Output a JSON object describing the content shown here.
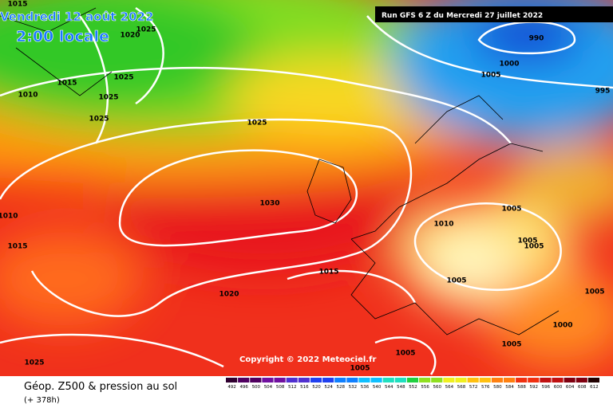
{
  "header": {
    "valid_date": "Vendredi 12 août 2022",
    "local_time": "2:00 locale",
    "run": "Run GFS 6 Z du Mercredi 27 juillet 2022"
  },
  "copyright": "Copyright © 2022 Meteociel.fr",
  "footer": {
    "title": "Géop. Z500 & pression au sol",
    "lead_time": "(+ 378h)"
  },
  "isobar_labels": [
    1015,
    1020,
    1025,
    1015,
    1025,
    1010,
    1025,
    1025,
    1025,
    990,
    1000,
    1005,
    995,
    1030,
    1010,
    1015,
    1010,
    1005,
    1005,
    1005,
    1015,
    1005,
    1005,
    1020,
    1000,
    1005,
    1005,
    1005,
    1025
  ],
  "colorbar": [
    492,
    496,
    500,
    504,
    508,
    512,
    516,
    520,
    524,
    528,
    532,
    536,
    540,
    544,
    548,
    552,
    556,
    560,
    564,
    568,
    572,
    576,
    580,
    584,
    588,
    592,
    596,
    600,
    604,
    608,
    612
  ]
}
